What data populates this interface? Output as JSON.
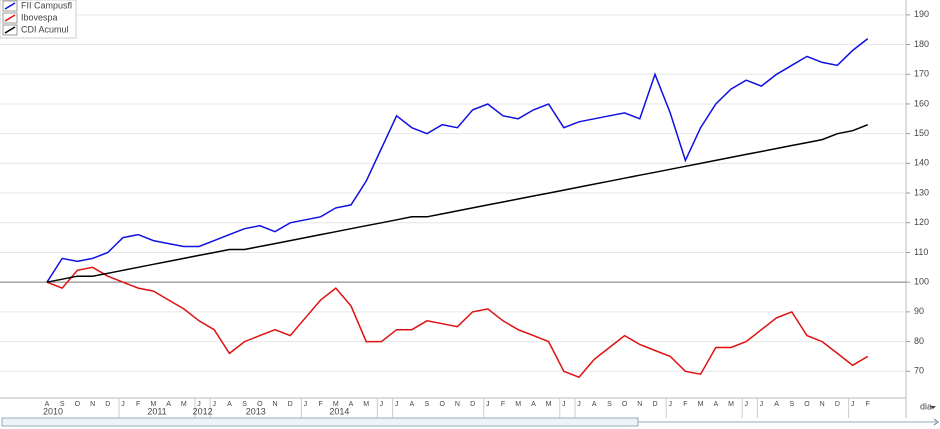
{
  "chart_data": {
    "type": "line",
    "categories": [
      "A",
      "S",
      "O",
      "N",
      "D",
      "J",
      "F",
      "M",
      "A",
      "M",
      "J",
      "J",
      "A",
      "S",
      "O",
      "N",
      "D",
      "J",
      "F",
      "M",
      "A",
      "M",
      "J",
      "J",
      "A",
      "S",
      "O",
      "N",
      "D",
      "J",
      "F",
      "M",
      "A",
      "M",
      "J",
      "J",
      "A",
      "S",
      "O",
      "N",
      "D",
      "J",
      "F",
      "M",
      "A",
      "M",
      "J",
      "J",
      "A",
      "S",
      "O",
      "N",
      "D",
      "J",
      "F"
    ],
    "years": [
      "2010",
      "2011",
      "2012",
      "2013",
      "2014"
    ],
    "series": [
      {
        "name": "FII Campusfl",
        "color": "#1010e0",
        "values": [
          100,
          108,
          107,
          108,
          110,
          115,
          116,
          114,
          113,
          112,
          112,
          114,
          116,
          118,
          119,
          117,
          120,
          121,
          122,
          125,
          126,
          134,
          145,
          156,
          152,
          150,
          153,
          152,
          158,
          160,
          156,
          155,
          158,
          160,
          152,
          154,
          155,
          156,
          157,
          155,
          170,
          157,
          141,
          152,
          160,
          165,
          168,
          166,
          170,
          173,
          176,
          174,
          173,
          178,
          182
        ]
      },
      {
        "name": "Ibovespa",
        "color": "#e01010",
        "values": [
          100,
          98,
          104,
          105,
          102,
          100,
          98,
          97,
          94,
          91,
          87,
          84,
          76,
          80,
          82,
          84,
          82,
          88,
          94,
          98,
          92,
          80,
          80,
          84,
          84,
          87,
          86,
          85,
          90,
          91,
          87,
          84,
          82,
          80,
          70,
          68,
          74,
          78,
          82,
          79,
          77,
          75,
          70,
          69,
          78,
          78,
          80,
          84,
          88,
          90,
          82,
          80,
          76,
          72,
          75
        ]
      },
      {
        "name": "CDI Acumul",
        "color": "#000000",
        "values": [
          100,
          101,
          102,
          102,
          103,
          104,
          105,
          106,
          107,
          108,
          109,
          110,
          111,
          111,
          112,
          113,
          114,
          115,
          116,
          117,
          118,
          119,
          120,
          121,
          122,
          122,
          123,
          124,
          125,
          126,
          127,
          128,
          129,
          130,
          131,
          132,
          133,
          134,
          135,
          136,
          137,
          138,
          139,
          140,
          141,
          142,
          143,
          144,
          145,
          146,
          147,
          148,
          150,
          151,
          153
        ]
      }
    ],
    "ylim": [
      61,
      195
    ],
    "yticks": [
      70,
      80,
      90,
      100,
      110,
      120,
      130,
      140,
      150,
      160,
      170,
      180,
      190
    ],
    "reference_line": 100,
    "grid": true,
    "legend": "top-left",
    "period_selector": "dia"
  }
}
